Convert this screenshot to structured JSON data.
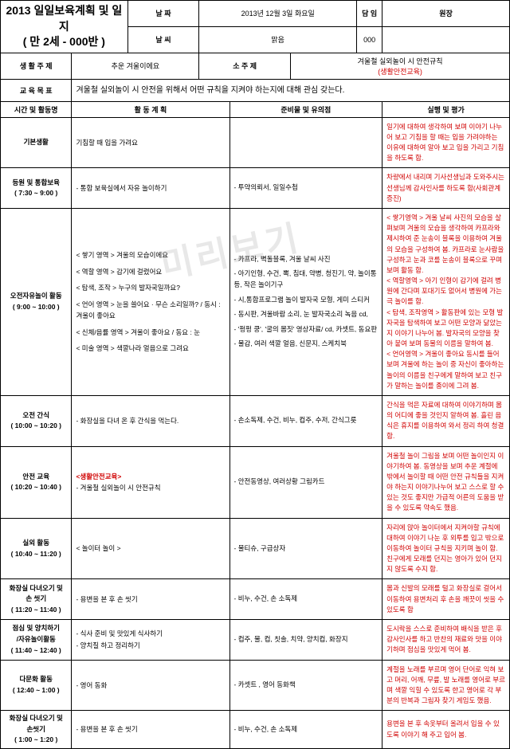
{
  "title": {
    "line1": "2013 일일보육계획 및 일지",
    "line2": "( 만 2세 - 000반 )"
  },
  "header": {
    "date_lbl": "날 짜",
    "date_val": "2013년 12월 3일 화요일",
    "weather_lbl": "날 씨",
    "weather_val": "맑음",
    "teacher_lbl": "담 임",
    "director_lbl": "원장",
    "sign_val": "000"
  },
  "topic": {
    "life_lbl": "생 활 주 제",
    "life_val": "추운 겨울이에요",
    "sub_lbl": "소 주 제",
    "sub_val1": "겨울철 실외놀이 시 안전규칙",
    "sub_val2": "(생활안전교육)",
    "goal_lbl": "교 육 목 표",
    "goal_val": "겨울철 실외놀이 시 안전을 위해서 어떤 규칙을 지켜야 하는지에 대해 관심 갖는다."
  },
  "cols": {
    "time": "시간 및 활동명",
    "plan": "활 동 계 획",
    "prep": "준비물 및 유의점",
    "eval": "실행 및 평가"
  },
  "rows": [
    {
      "time": "기본생활",
      "plan": "기침할 때 입을 가려요",
      "prep": "",
      "eval": "일기에 대하여 생각하여 보며 이야기 나누어 보고 기침을 할 때는 입을 가려야하는 이유에 대하여 알아 보고 입을 가리고 기침을 하도록 함."
    },
    {
      "time": "등원 및 통합보육\n( 7:30 ~ 9:00 )",
      "plan": "- 통합 보육실에서 자유 놀이하기",
      "prep": "- 투약의뢰서, 일일수첩",
      "eval": "차량에서 내리며 기사선생님과 도와주시는 선생님께 감사인사를 하도록 함(사회관계증진)"
    },
    {
      "time": "오전자유놀이 활동\n( 9:00 ~ 10:00 )",
      "plan_areas": [
        {
          "area": "< 쌓기 영역 > 겨울의 모습이에요"
        },
        {
          "area": "< 역할 영역 > 감기에 걸렸어요"
        },
        {
          "area": "< 탐색, 조작 > 누구의 발자국일까요?"
        },
        {
          "area": "< 언어 영역 > 눈을 쓸어요 · 무슨 소리일까? / 동시 : 겨울이 좋아요"
        },
        {
          "area": "< 신체/음률 영역 > 겨울이 좋아요 / 동요 : 눈"
        },
        {
          "area": "< 미술 영역 > 색깔나라 얼음으로 그려요"
        }
      ],
      "prep_items": [
        "- 카프라, 벽돌블록, 겨울 날씨 사진",
        "- 아기인형, 수건, 뽁, 침대, 약병, 청진기, 약, 놀이통 등, 작은 놀이기구",
        "- 시,통합프로그램 놀이 발자국 모형, 게미 스티커",
        "- 동시판, 겨울바람 소리, 눈 발자국소리 녹음 cd,",
        "- '펑펑 쿵', '굴의 몸짓' 영상자료/ cd, 카셋트, 동요판",
        "- 물감, 여러 색깔 얼음, 신문지, 스케치북"
      ],
      "eval": "< 쌓기영역 > 겨울 날씨 사진의 모습을 살펴보며 겨울의 모습을 생각하여 카프라와 제시하여 준 눈송이 블록을 이용하여 겨울의 모습을 구성하여 봄. 카프라로 눈사람을 구성하고 눈과 코를 눈송이 블록으로 꾸며 보며 활동 함.\n< 역할영역 > 아기 인형이 감기에 걸려 병원에 간다며 포대기도 없어서 병원에 가는 극 놀이를 함.\n< 탐색, 조작영역 > 활동판에 있는 모형 발자국을 탐색하여 보고 어떤 모양과 닮았는지 이야기 나누어 봄. 발자국의 모양을 찾아 붙여 보며 동물의 이름을 말하여 봄.\n< 언어영역 > 겨울이 좋아요 동시를 들어보며 겨울에 하는 놀이 중 자신이 좋아하는 놀이의 이름을 친구에게 말하여 보고 친구가 말하는 놀이를 종이에 그려 봄."
    },
    {
      "time": "오전 간식\n( 10:00 ~ 10:20 )",
      "plan": "- 화장실을 다녀 온 후 간식을 먹는다.",
      "prep": "- 손소독제, 수건, 비누, 컵주, 수저, 간식그릇",
      "eval": "간식을 먹은 자료에 대하여 이야기하며 몸의 어디에 좋을 것인지 알하여 봄. 흘린 음식은 휴지를 이용하여 와서 정리 하여 청결 함."
    },
    {
      "time": "안전 교육\n( 10:20 ~ 10:40 )",
      "plan_edu_lbl": "<생활안전교육>",
      "plan_edu_val": "- 겨울철 실외놀이 시 안전규칙",
      "prep": "- 안전동영상, 여러상황 그림카드",
      "eval": "겨울철 놀이 그림을 보며 어떤 놀이인지 이야기하여 봄. 동영상을 보며 추운 계절에 밖에서 놀이할 때 어떤 안전 규칙들을 지켜야 하는지 이야기나누어 보고 스스로 할 수 있는 것도 좋지만 가급적 어른의 도움을 받을 수 있도록 약속도 했음."
    },
    {
      "time": "실외 활동\n( 10:40 ~ 11:20 )",
      "plan": "< 놀이터 놀이 >",
      "prep": "- 물티슈, 구급상자",
      "eval": "자리에 앉아 놀이터에서 지켜야할 규칙에 대하여 이야기 나눈 후 외투를 입고 밖으로 이동하여 놀이터 규칙을 지키며 놀이 함. 친구에게 모래를 던지는 영아가 있어 던지지 않도록 수지 함."
    },
    {
      "time": "화장실 다녀오기 및\n손 씻기\n( 11:20 ~ 11:40 )",
      "plan": "- 용변을 본 후 손 씻기",
      "prep": "- 비누, 수건, 손 소독제",
      "eval": "몸과 신발의 모래를 털고 화장실로 걸어서 이동하여 용변처리 후 손을 깨끗이 씻을 수 있도록 함"
    },
    {
      "time": "점심 및 양치하기\n/자유놀이활동\n( 11:40 ~ 12:40 )",
      "plan": "- 식사 준비 및  맛있게 식사하기\n- 양치질 하고 정리하기",
      "prep": "- 컵주, 물, 컵, 칫솔, 치약, 양치컵, 화장지",
      "eval": "도시락을 스스로 준비하여 배식을 받은 후 감사인사를 하고 반찬의 재료와 맛을 이야기하며 점심을 맛있게 먹어 봄."
    },
    {
      "time": "다문화 활동\n( 12:40 ~ 1:00 )",
      "plan": "- 영어 동화",
      "prep": "- 카셋트 , 영어 동화책",
      "eval": "계절을 노래를 부르며 영어 단어로 익혀 보고 머리, 어깨, 무릎, 발 노래를 영어로 부르며 색깔 익힐 수 있도록 한고 영어로 각 부분의 반복과 그림자 찾기 게임도 했음."
    },
    {
      "time": "화장실 다녀오기 및\n손씻기\n( 1:00 ~ 1:20 )",
      "plan": "- 용변을 본 후 손 씻기",
      "prep": "- 비누, 수건, 손 소독제",
      "eval": "용변을 본 후 속옷부터 올려서 입을 수 있도록 이야기 해 주고 입어 봄."
    }
  ],
  "watermark": "미리보기"
}
